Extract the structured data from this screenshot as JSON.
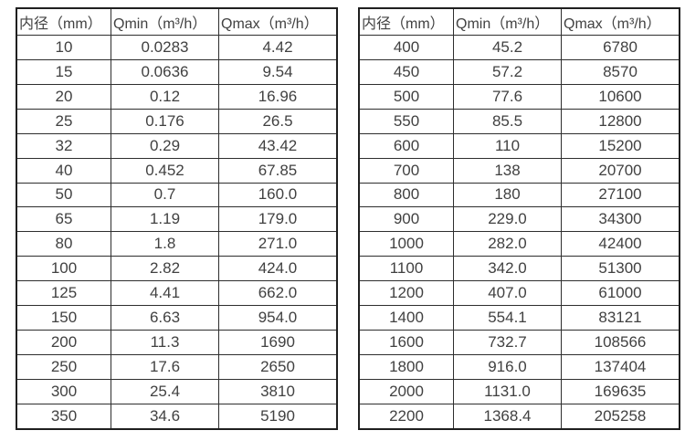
{
  "page": {
    "background_color": "#ffffff",
    "text_color": "#414141",
    "border_color": "#2e2e2e"
  },
  "tables": [
    {
      "name": "flow-table-small-diameters",
      "headers": [
        "内径（mm）",
        "Qmin（m³/h）",
        "Qmax（m³/h）"
      ],
      "rows": [
        [
          "10",
          "0.0283",
          "4.42"
        ],
        [
          "15",
          "0.0636",
          "9.54"
        ],
        [
          "20",
          "0.12",
          "16.96"
        ],
        [
          "25",
          "0.176",
          "26.5"
        ],
        [
          "32",
          "0.29",
          "43.42"
        ],
        [
          "40",
          "0.452",
          "67.85"
        ],
        [
          "50",
          "0.7",
          "160.0"
        ],
        [
          "65",
          "1.19",
          "179.0"
        ],
        [
          "80",
          "1.8",
          "271.0"
        ],
        [
          "100",
          "2.82",
          "424.0"
        ],
        [
          "125",
          "4.41",
          "662.0"
        ],
        [
          "150",
          "6.63",
          "954.0"
        ],
        [
          "200",
          "11.3",
          "1690"
        ],
        [
          "250",
          "17.6",
          "2650"
        ],
        [
          "300",
          "25.4",
          "3810"
        ],
        [
          "350",
          "34.6",
          "5190"
        ]
      ]
    },
    {
      "name": "flow-table-large-diameters",
      "headers": [
        "内径（mm）",
        "Qmin（m³/h）",
        "Qmax（m³/h）"
      ],
      "rows": [
        [
          "400",
          "45.2",
          "6780"
        ],
        [
          "450",
          "57.2",
          "8570"
        ],
        [
          "500",
          "77.6",
          "10600"
        ],
        [
          "550",
          "85.5",
          "12800"
        ],
        [
          "600",
          "110",
          "15200"
        ],
        [
          "700",
          "138",
          "20700"
        ],
        [
          "800",
          "180",
          "27100"
        ],
        [
          "900",
          "229.0",
          "34300"
        ],
        [
          "1000",
          "282.0",
          "42400"
        ],
        [
          "1100",
          "342.0",
          "51300"
        ],
        [
          "1200",
          "407.0",
          "61000"
        ],
        [
          "1400",
          "554.1",
          "83121"
        ],
        [
          "1600",
          "732.7",
          "108566"
        ],
        [
          "1800",
          "916.0",
          "137404"
        ],
        [
          "2000",
          "1131.0",
          "169635"
        ],
        [
          "2200",
          "1368.4",
          "205258"
        ]
      ]
    }
  ],
  "chart_data": [
    {
      "type": "table",
      "title": "",
      "columns": [
        "内径（mm）",
        "Qmin（m³/h）",
        "Qmax（m³/h）"
      ],
      "x": [
        10,
        15,
        20,
        25,
        32,
        40,
        50,
        65,
        80,
        100,
        125,
        150,
        200,
        250,
        300,
        350
      ],
      "series": [
        {
          "name": "Qmin (m³/h)",
          "values": [
            0.0283,
            0.0636,
            0.12,
            0.176,
            0.29,
            0.452,
            0.7,
            1.19,
            1.8,
            2.82,
            4.41,
            6.63,
            11.3,
            17.6,
            25.4,
            34.6
          ]
        },
        {
          "name": "Qmax (m³/h)",
          "values": [
            4.42,
            9.54,
            16.96,
            26.5,
            43.42,
            67.85,
            160.0,
            179.0,
            271.0,
            424.0,
            662.0,
            954.0,
            1690,
            2650,
            3810,
            5190
          ]
        }
      ]
    },
    {
      "type": "table",
      "title": "",
      "columns": [
        "内径（mm）",
        "Qmin（m³/h）",
        "Qmax（m³/h）"
      ],
      "x": [
        400,
        450,
        500,
        550,
        600,
        700,
        800,
        900,
        1000,
        1100,
        1200,
        1400,
        1600,
        1800,
        2000,
        2200
      ],
      "series": [
        {
          "name": "Qmin (m³/h)",
          "values": [
            45.2,
            57.2,
            77.6,
            85.5,
            110,
            138,
            180,
            229.0,
            282.0,
            342.0,
            407.0,
            554.1,
            732.7,
            916.0,
            1131.0,
            1368.4
          ]
        },
        {
          "name": "Qmax (m³/h)",
          "values": [
            6780,
            8570,
            10600,
            12800,
            15200,
            20700,
            27100,
            34300,
            42400,
            51300,
            61000,
            83121,
            108566,
            137404,
            169635,
            205258
          ]
        }
      ]
    }
  ]
}
